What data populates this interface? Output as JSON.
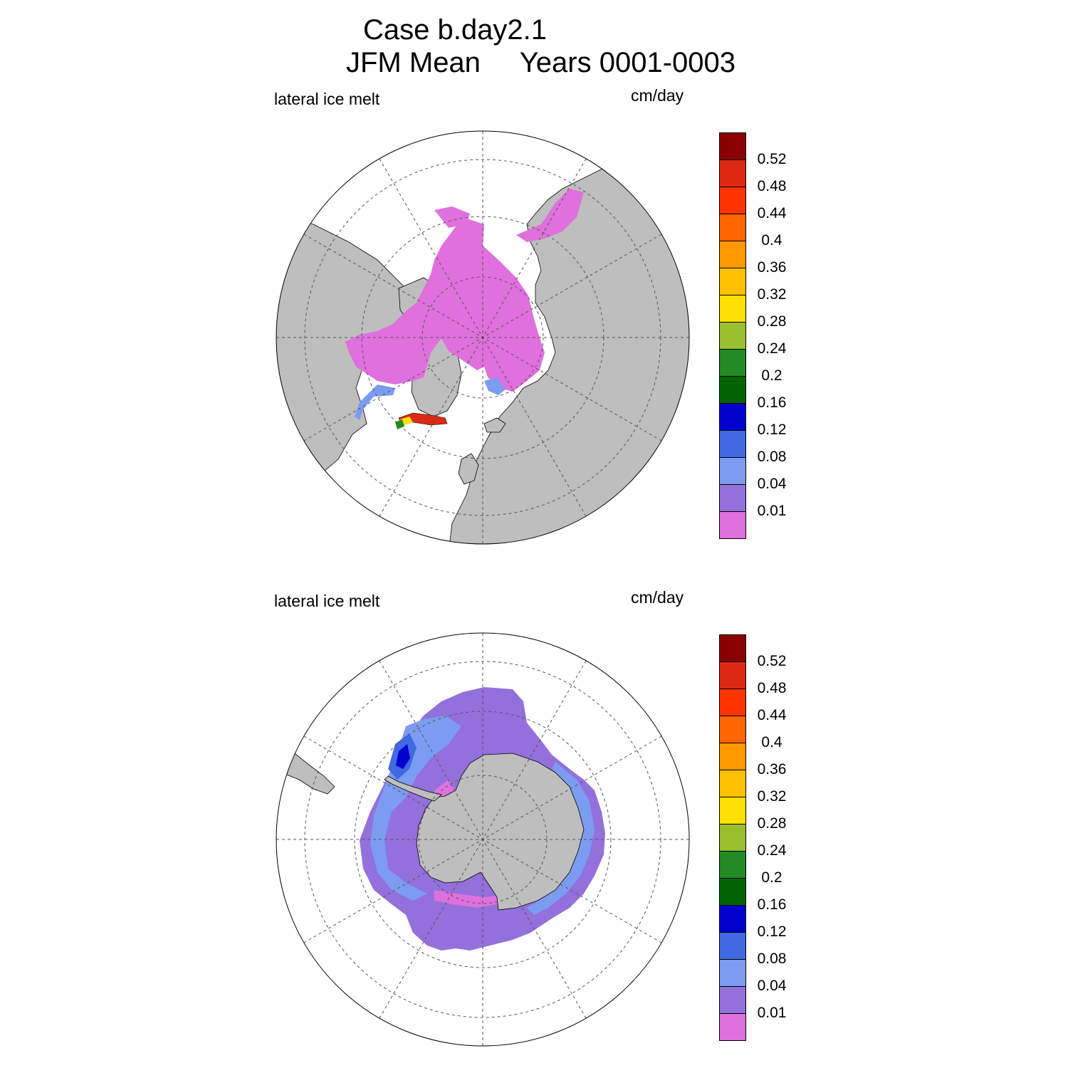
{
  "title": {
    "line1": "Case b.day2.1",
    "line2": "JFM Mean     Years 0001-0003"
  },
  "panels": [
    {
      "name": "north",
      "variable_label": "lateral ice melt",
      "units_label": "cm/day"
    },
    {
      "name": "south",
      "variable_label": "lateral ice melt",
      "units_label": "cm/day"
    }
  ],
  "colorbar": {
    "levels": [
      "0.52",
      "0.48",
      "0.44",
      "0.4",
      "0.36",
      "0.32",
      "0.28",
      "0.24",
      "0.2",
      "0.16",
      "0.12",
      "0.08",
      "0.04",
      "0.01"
    ],
    "colors": [
      "#8b0000",
      "#dc2a12",
      "#ff3300",
      "#ff6600",
      "#ff9900",
      "#ffc000",
      "#ffe000",
      "#9ac030",
      "#228b22",
      "#006400",
      "#0000cd",
      "#4169e1",
      "#7b9cf0",
      "#9370db",
      "#e070dd"
    ]
  },
  "colors": {
    "land": "#bebebe",
    "ocean": "#ffffff",
    "grid": "#555555"
  }
}
